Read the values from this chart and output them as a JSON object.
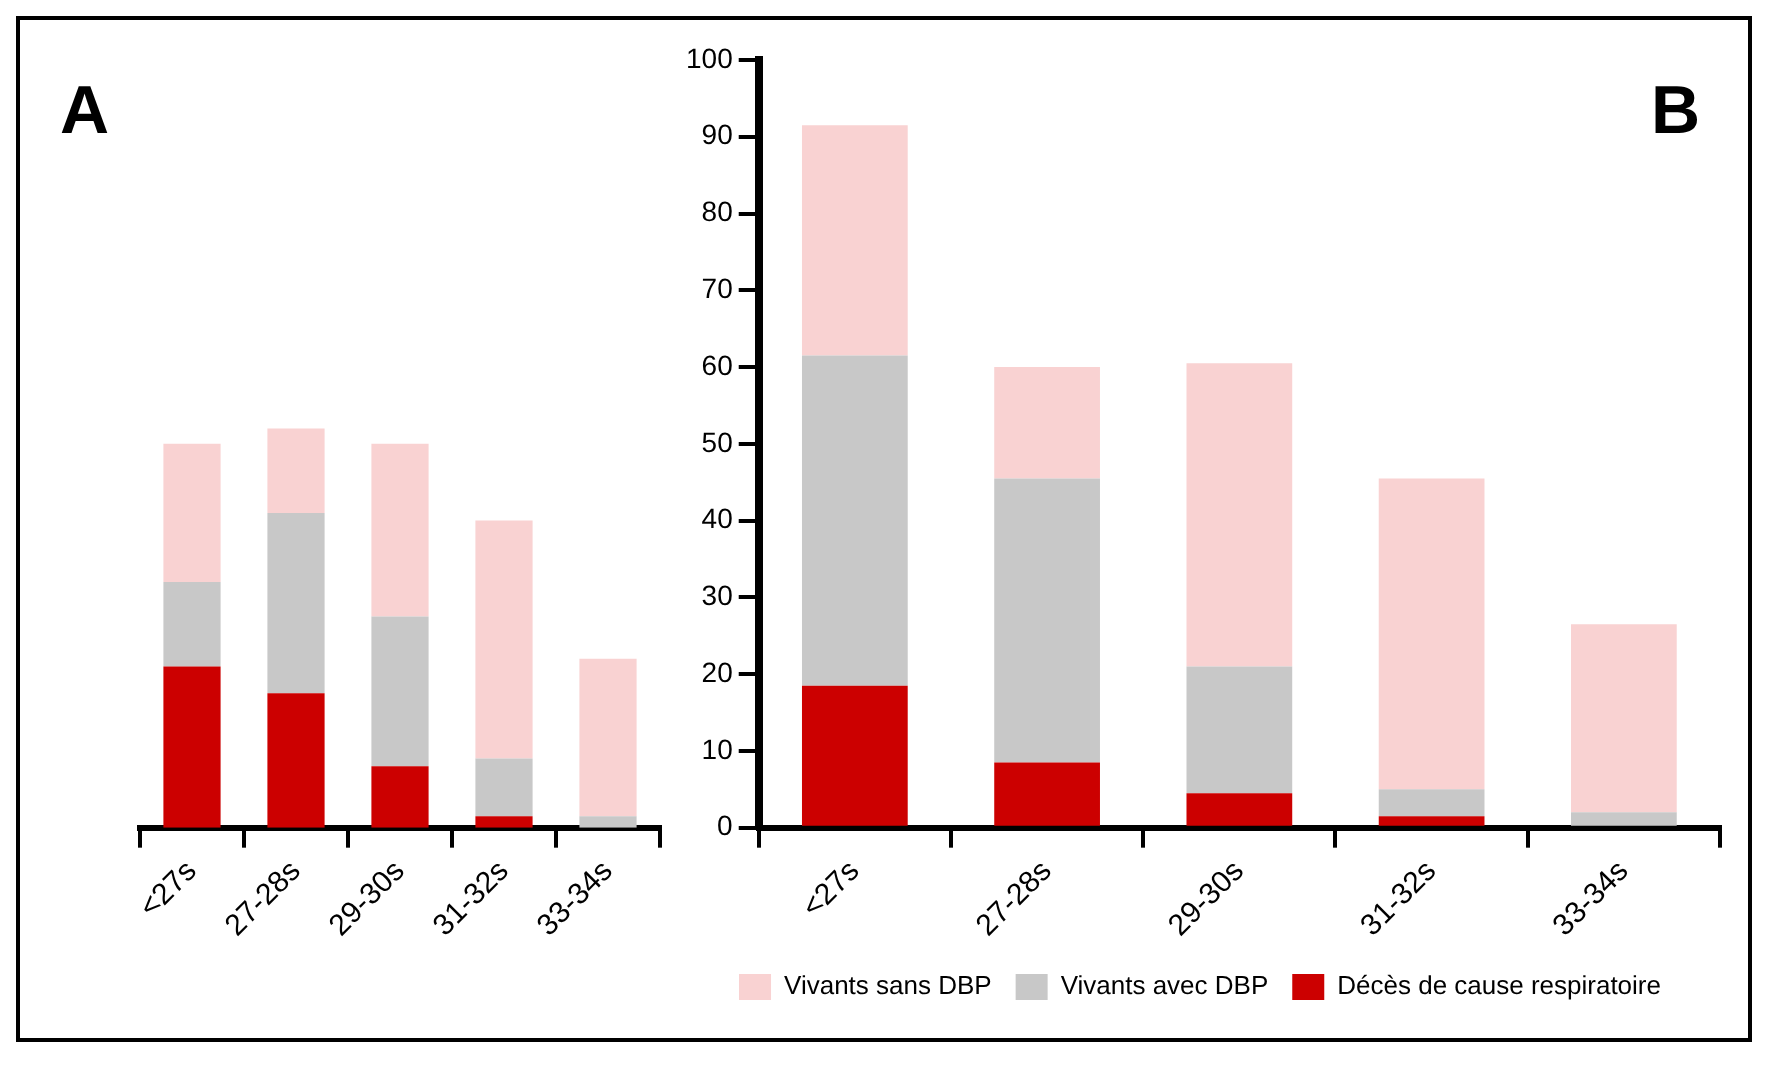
{
  "chart_data": [
    {
      "type": "bar",
      "title": "A",
      "categories": [
        "<27s",
        "27-28s",
        "29-30s",
        "31-32s",
        "33-34s"
      ],
      "stacked": true,
      "ylim": [
        0,
        100
      ],
      "tick_labels": "x",
      "grid": false,
      "series": [
        {
          "color": "#cc0000",
          "values": [
            21,
            17.5,
            8,
            1.5,
            0
          ]
        },
        {
          "color": "#c8c8c8",
          "values": [
            11,
            23.5,
            19.5,
            7.5,
            1.5
          ]
        },
        {
          "color": "#f9d2d2",
          "values": [
            18,
            11,
            22.5,
            31,
            20.5
          ]
        }
      ]
    },
    {
      "type": "bar",
      "title": "B",
      "categories": [
        "<27s",
        "27-28s",
        "29-30s",
        "31-32s",
        "33-34s"
      ],
      "stacked": true,
      "ylim": [
        0,
        100
      ],
      "yticks": [
        0,
        10,
        20,
        30,
        40,
        50,
        60,
        70,
        80,
        90,
        100
      ],
      "grid": false,
      "legend": "bottom",
      "series": [
        {
          "name": "Décès de cause respiratoire",
          "color": "#cc0000",
          "values": [
            18.5,
            8.5,
            4.5,
            1.5,
            0
          ]
        },
        {
          "name": "Vivants avec DBP",
          "color": "#c8c8c8",
          "values": [
            43,
            37,
            16.5,
            3.5,
            2
          ]
        },
        {
          "name": "Vivants sans DBP",
          "color": "#f9d2d2",
          "values": [
            30,
            14.5,
            39.5,
            40.5,
            24.5
          ]
        }
      ]
    }
  ]
}
